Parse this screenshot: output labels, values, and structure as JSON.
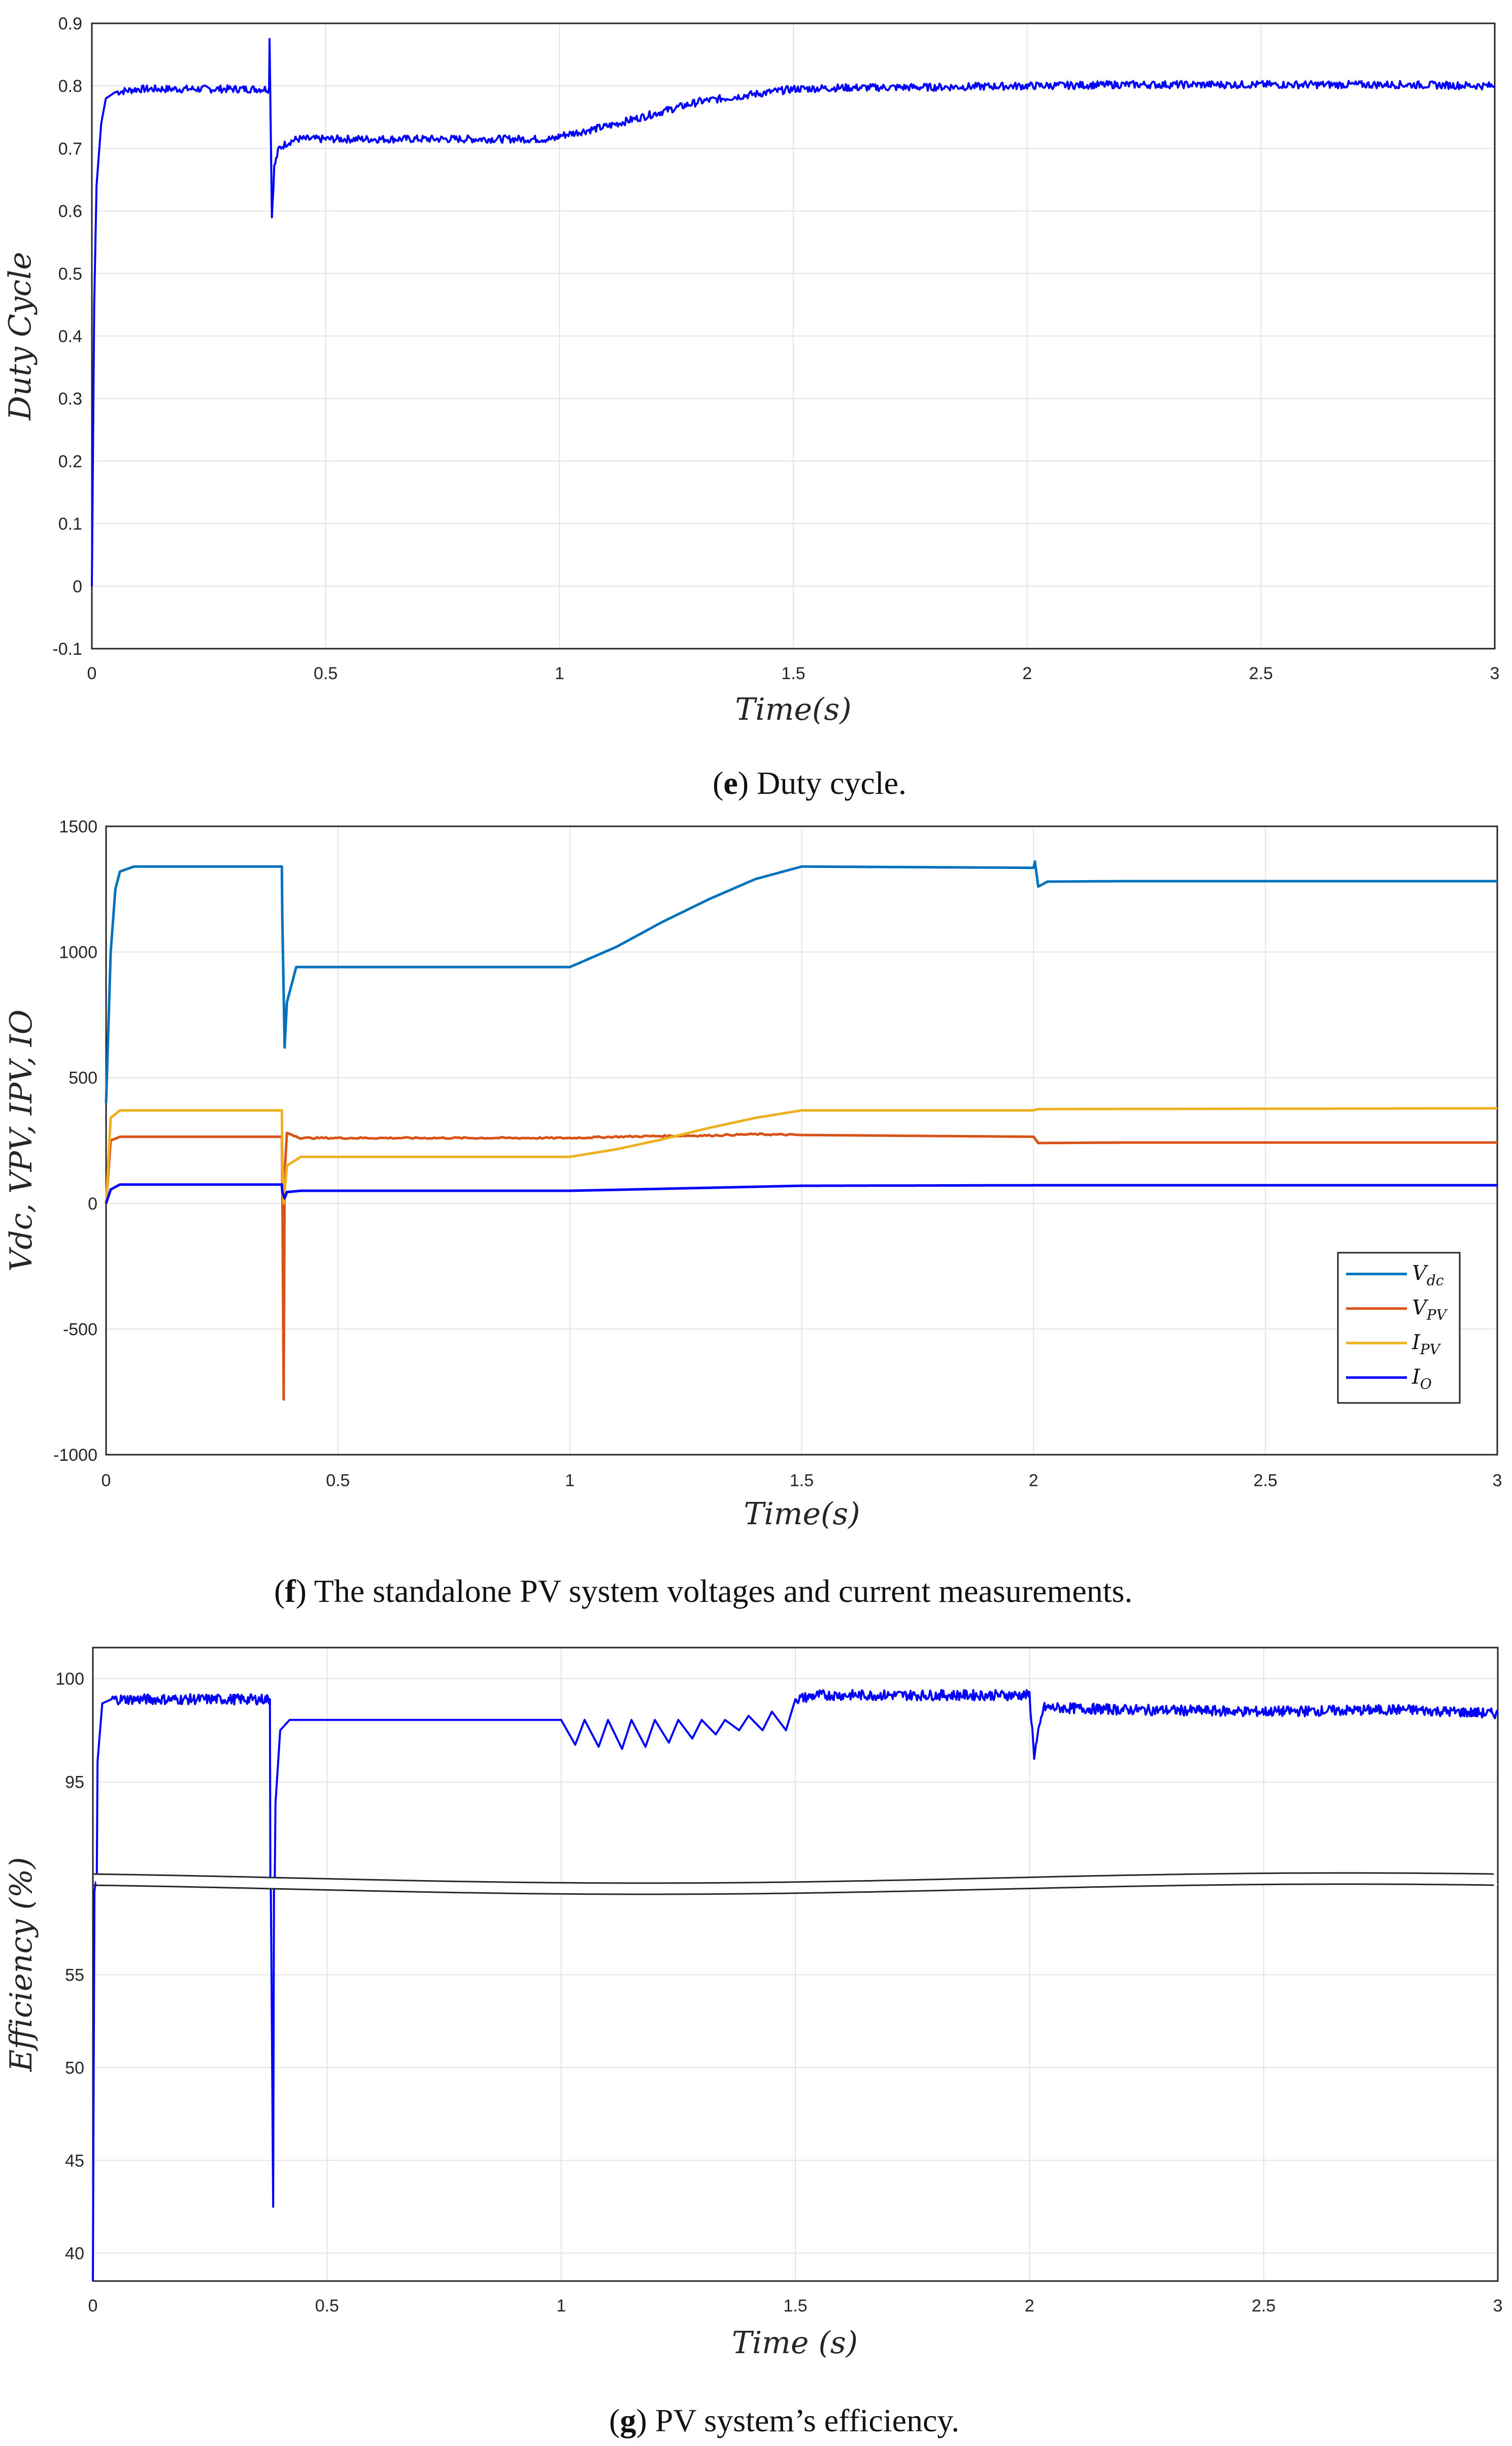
{
  "captions": [
    {
      "label": "e",
      "text": ") Duty cycle."
    },
    {
      "label": "f",
      "text": ") The standalone PV system voltages and current measurements."
    },
    {
      "label": "g",
      "text": ") PV system’s efficiency."
    }
  ],
  "colors": {
    "Vdc": "#0072bd",
    "VPV": "#d95319",
    "IPV": "#edb120",
    "IO": "#0000ff",
    "duty": "#0000ff",
    "efficiency": "#0000ff"
  },
  "chart_data": [
    {
      "id": "duty",
      "type": "line",
      "title": "",
      "xlabel": "Time(s)",
      "ylabel": "Duty Cycle",
      "xlim": [
        0,
        3
      ],
      "ylim": [
        -0.1,
        0.9
      ],
      "xticks": [
        "0",
        "0.5",
        "1",
        "1.5",
        "2",
        "2.5",
        "3"
      ],
      "yticks": [
        "-0.1",
        "0",
        "0.1",
        "0.2",
        "0.3",
        "0.4",
        "0.5",
        "0.6",
        "0.7",
        "0.8",
        "0.9"
      ],
      "grid": true,
      "series": [
        {
          "name": "Duty cycle",
          "color": "#0000ff",
          "x": [
            0,
            0.005,
            0.01,
            0.02,
            0.03,
            0.05,
            0.1,
            0.2,
            0.3,
            0.37,
            0.379,
            0.38,
            0.385,
            0.39,
            0.4,
            0.42,
            0.44,
            0.5,
            0.7,
            0.9,
            0.99,
            1.0,
            1.1,
            1.2,
            1.3,
            1.4,
            1.5,
            1.6,
            1.8,
            2.0,
            2.2,
            2.4,
            2.6,
            2.8,
            3.0
          ],
          "y": [
            0,
            0.45,
            0.64,
            0.74,
            0.78,
            0.79,
            0.795,
            0.795,
            0.795,
            0.795,
            0.795,
            0.88,
            0.59,
            0.67,
            0.7,
            0.71,
            0.715,
            0.715,
            0.715,
            0.715,
            0.715,
            0.72,
            0.735,
            0.755,
            0.775,
            0.785,
            0.795,
            0.797,
            0.798,
            0.8,
            0.802,
            0.802,
            0.802,
            0.802,
            0.8
          ]
        }
      ]
    },
    {
      "id": "measurements",
      "type": "line",
      "title": "",
      "xlabel": "Time(s)",
      "ylabel": "Vdc, VPV, IPV, IO",
      "xlim": [
        0,
        3
      ],
      "ylim": [
        -1000,
        1500
      ],
      "xticks": [
        "0",
        "0.5",
        "1",
        "1.5",
        "2",
        "2.5",
        "3"
      ],
      "yticks": [
        "-1000",
        "-500",
        "0",
        "500",
        "1000",
        "1500"
      ],
      "grid": true,
      "legend": "bottom-right",
      "series": [
        {
          "name": "Vdc",
          "legend_main": "V",
          "legend_sub": "dc",
          "color": "#0072bd",
          "x": [
            0,
            0.01,
            0.02,
            0.03,
            0.06,
            0.2,
            0.379,
            0.38,
            0.385,
            0.39,
            0.41,
            0.5,
            0.7,
            1.0,
            1.1,
            1.2,
            1.3,
            1.4,
            1.5,
            2.0,
            2.003,
            2.01,
            2.03,
            2.2,
            2.5,
            3.0
          ],
          "y": [
            400,
            1000,
            1250,
            1320,
            1340,
            1340,
            1340,
            1140,
            620,
            800,
            940,
            940,
            940,
            940,
            1020,
            1120,
            1210,
            1290,
            1340,
            1335,
            1360,
            1260,
            1280,
            1282,
            1282,
            1282
          ]
        },
        {
          "name": "VPV",
          "legend_main": "V",
          "legend_sub": "PV",
          "color": "#d95319",
          "x": [
            0,
            0.01,
            0.03,
            0.379,
            0.38,
            0.383,
            0.385,
            0.39,
            0.42,
            1.0,
            1.1,
            1.2,
            1.3,
            1.4,
            1.5,
            2.0,
            2.01,
            2.2,
            3.0
          ],
          "y": [
            0,
            250,
            265,
            265,
            100,
            -780,
            120,
            280,
            260,
            260,
            265,
            268,
            270,
            275,
            272,
            265,
            240,
            242,
            242
          ]
        },
        {
          "name": "IPV",
          "legend_main": "I",
          "legend_sub": "PV",
          "color": "#edb120",
          "x": [
            0,
            0.01,
            0.03,
            0.379,
            0.38,
            0.383,
            0.39,
            0.42,
            0.5,
            1.0,
            1.1,
            1.2,
            1.3,
            1.4,
            1.5,
            2.0,
            2.01,
            3.0
          ],
          "y": [
            0,
            340,
            370,
            370,
            180,
            0,
            150,
            185,
            185,
            185,
            215,
            255,
            300,
            340,
            370,
            370,
            375,
            378
          ]
        },
        {
          "name": "IO",
          "legend_main": "I",
          "legend_sub": "O",
          "color": "#0000ff",
          "x": [
            0,
            0.01,
            0.03,
            0.379,
            0.38,
            0.385,
            0.39,
            0.42,
            1.0,
            1.5,
            2.0,
            3.0
          ],
          "y": [
            0,
            55,
            75,
            75,
            45,
            20,
            45,
            50,
            50,
            70,
            72,
            72
          ]
        }
      ]
    },
    {
      "id": "efficiency",
      "type": "line",
      "title": "",
      "xlabel": "Time (s)",
      "ylabel": "Efficiency (%)",
      "xlim": [
        0,
        3
      ],
      "y_segments": [
        {
          "range": [
            38.5,
            59.5
          ],
          "ticks": [
            "40",
            "45",
            "50",
            "55"
          ]
        },
        {
          "range": [
            90.5,
            101.5
          ],
          "ticks": [
            "95",
            "100"
          ]
        }
      ],
      "xticks": [
        "0",
        "0.5",
        "1",
        "1.5",
        "2",
        "2.5",
        "3"
      ],
      "grid": true,
      "series": [
        {
          "name": "Efficiency",
          "color": "#0000ff",
          "x": [
            0,
            0.005,
            0.01,
            0.02,
            0.04,
            0.1,
            0.2,
            0.3,
            0.378,
            0.38,
            0.385,
            0.39,
            0.4,
            0.42,
            0.45,
            0.6,
            0.8,
            1.0,
            1.03,
            1.05,
            1.08,
            1.1,
            1.13,
            1.15,
            1.18,
            1.2,
            1.23,
            1.25,
            1.28,
            1.3,
            1.33,
            1.35,
            1.38,
            1.4,
            1.43,
            1.45,
            1.48,
            1.5,
            1.55,
            1.7,
            1.9,
            2.0,
            2.01,
            2.03,
            2.2,
            2.5,
            2.8,
            3.0
          ],
          "y": [
            38.5,
            70,
            96,
            98.8,
            99,
            99,
            99,
            99,
            99,
            60,
            42.5,
            94,
            97.5,
            98,
            98,
            98,
            98,
            98,
            96.8,
            98,
            96.7,
            98,
            96.6,
            98,
            96.7,
            98,
            96.9,
            98,
            97.1,
            98,
            97.3,
            98,
            97.5,
            98.2,
            97.5,
            98.4,
            97.5,
            99,
            99.2,
            99.2,
            99.2,
            99.2,
            96.3,
            98.6,
            98.5,
            98.4,
            98.5,
            98.3
          ]
        }
      ]
    }
  ]
}
